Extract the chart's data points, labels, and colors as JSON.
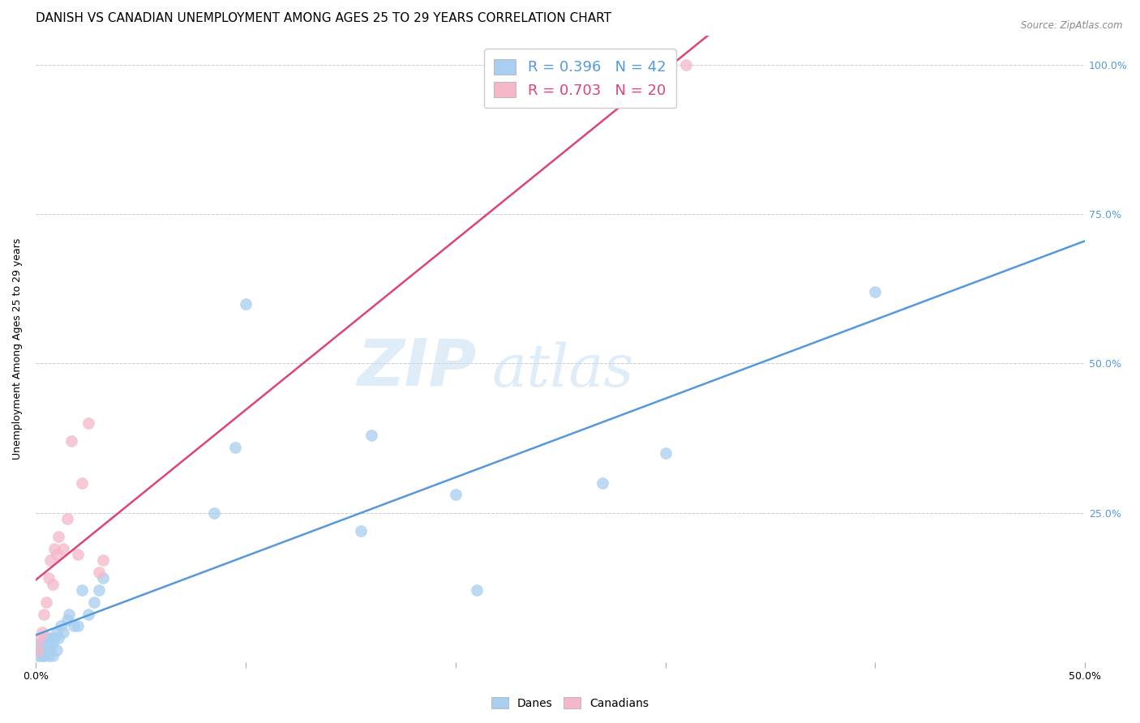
{
  "title": "DANISH VS CANADIAN UNEMPLOYMENT AMONG AGES 25 TO 29 YEARS CORRELATION CHART",
  "source": "Source: ZipAtlas.com",
  "ylabel": "Unemployment Among Ages 25 to 29 years",
  "xlim": [
    0.0,
    0.5
  ],
  "ylim": [
    0.0,
    1.05
  ],
  "xticks": [
    0.0,
    0.1,
    0.2,
    0.3,
    0.4,
    0.5
  ],
  "xtick_labels": [
    "0.0%",
    "",
    "",
    "",
    "",
    "50.0%"
  ],
  "ytick_labels": [
    "",
    "25.0%",
    "50.0%",
    "75.0%",
    "100.0%"
  ],
  "yticks": [
    0.0,
    0.25,
    0.5,
    0.75,
    1.0
  ],
  "danes_x": [
    0.001,
    0.001,
    0.002,
    0.002,
    0.003,
    0.003,
    0.003,
    0.004,
    0.004,
    0.005,
    0.005,
    0.006,
    0.006,
    0.007,
    0.007,
    0.008,
    0.008,
    0.009,
    0.01,
    0.01,
    0.011,
    0.012,
    0.013,
    0.015,
    0.016,
    0.018,
    0.02,
    0.022,
    0.025,
    0.028,
    0.03,
    0.032,
    0.085,
    0.095,
    0.1,
    0.155,
    0.16,
    0.2,
    0.21,
    0.27,
    0.3,
    0.4
  ],
  "danes_y": [
    0.01,
    0.02,
    0.02,
    0.03,
    0.01,
    0.02,
    0.03,
    0.01,
    0.03,
    0.02,
    0.04,
    0.01,
    0.03,
    0.02,
    0.04,
    0.01,
    0.03,
    0.04,
    0.02,
    0.05,
    0.04,
    0.06,
    0.05,
    0.07,
    0.08,
    0.06,
    0.06,
    0.12,
    0.08,
    0.1,
    0.12,
    0.14,
    0.25,
    0.36,
    0.6,
    0.22,
    0.38,
    0.28,
    0.12,
    0.3,
    0.35,
    0.62
  ],
  "canadians_x": [
    0.001,
    0.002,
    0.003,
    0.004,
    0.005,
    0.006,
    0.007,
    0.008,
    0.009,
    0.01,
    0.011,
    0.013,
    0.015,
    0.017,
    0.02,
    0.022,
    0.025,
    0.03,
    0.032,
    0.31
  ],
  "canadians_y": [
    0.02,
    0.04,
    0.05,
    0.08,
    0.1,
    0.14,
    0.17,
    0.13,
    0.19,
    0.18,
    0.21,
    0.19,
    0.24,
    0.37,
    0.18,
    0.3,
    0.4,
    0.15,
    0.17,
    1.0
  ],
  "danes_color": "#A8CEF0",
  "canadians_color": "#F5B8C8",
  "danes_line_color": "#5599DD",
  "canadians_line_color": "#DD4477",
  "danes_R": 0.396,
  "danes_N": 42,
  "canadians_R": 0.703,
  "canadians_N": 20,
  "background_color": "#FFFFFF",
  "grid_color": "#CCCCCC",
  "title_fontsize": 11,
  "axis_label_fontsize": 9,
  "tick_fontsize": 9,
  "legend_fontsize": 13,
  "right_ytick_color": "#5599DD",
  "watermark_zip_color": "#C8DFF5",
  "watermark_atlas_color": "#C8DFF5"
}
